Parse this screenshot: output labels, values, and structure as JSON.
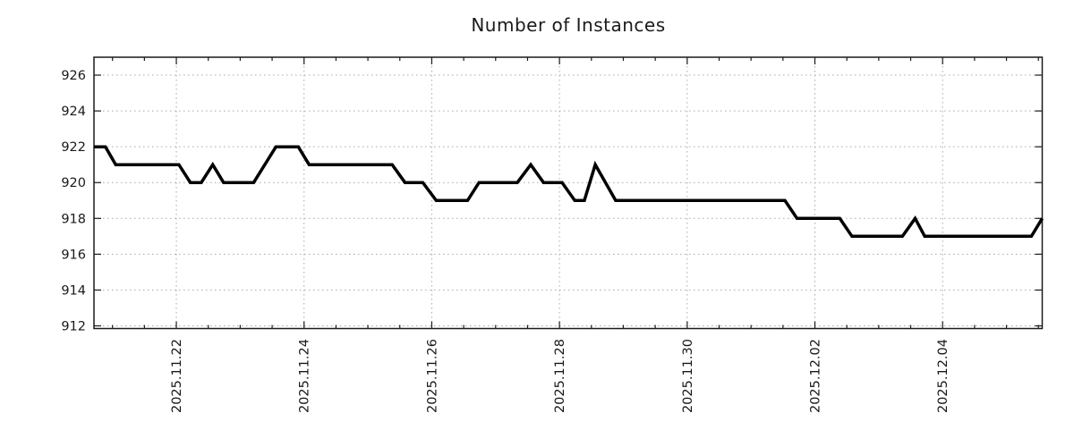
{
  "chart_data": {
    "type": "line",
    "title": "Number of Instances",
    "legend": "none",
    "grid": "dotted",
    "x_axis": {
      "label": "",
      "unit": "days since 2025-11-22 00:00",
      "range_days": [
        -1.29,
        13.56
      ],
      "major_tick_positions_days": [
        0,
        2,
        4,
        6,
        8,
        10,
        12
      ],
      "tick_labels": [
        "2025.11.22",
        "2025.11.24",
        "2025.11.26",
        "2025.11.28",
        "2025.11.30",
        "2025.12.02",
        "2025.12.04"
      ],
      "minor_tick_interval_days": 0.5
    },
    "y_axis": {
      "label": "",
      "range": [
        911.85,
        927.0
      ],
      "tick_values": [
        912,
        914,
        916,
        918,
        920,
        922,
        924,
        926
      ],
      "tick_labels": [
        "912",
        "914",
        "916",
        "918",
        "920",
        "922",
        "924",
        "926"
      ]
    },
    "series": [
      {
        "name": "instances",
        "color": "#000000",
        "points": [
          [
            -1.29,
            922
          ],
          [
            -1.11,
            922
          ],
          [
            -0.95,
            921
          ],
          [
            0.04,
            921
          ],
          [
            0.22,
            920
          ],
          [
            0.39,
            920
          ],
          [
            0.57,
            921
          ],
          [
            0.74,
            920
          ],
          [
            1.21,
            920
          ],
          [
            1.56,
            922
          ],
          [
            1.91,
            922
          ],
          [
            2.08,
            921
          ],
          [
            3.38,
            921
          ],
          [
            3.58,
            920
          ],
          [
            3.86,
            920
          ],
          [
            4.07,
            919
          ],
          [
            4.56,
            919
          ],
          [
            4.74,
            920
          ],
          [
            5.34,
            920
          ],
          [
            5.55,
            921
          ],
          [
            5.75,
            920
          ],
          [
            6.04,
            920
          ],
          [
            6.24,
            919
          ],
          [
            6.39,
            919
          ],
          [
            6.56,
            921
          ],
          [
            6.88,
            919
          ],
          [
            9.53,
            919
          ],
          [
            9.72,
            918
          ],
          [
            10.39,
            918
          ],
          [
            10.58,
            917
          ],
          [
            11.37,
            917
          ],
          [
            11.57,
            918
          ],
          [
            11.72,
            917
          ],
          [
            13.39,
            917
          ],
          [
            13.56,
            918
          ]
        ]
      }
    ]
  },
  "colors": {
    "background": "#ffffff",
    "grid": "#a8a8a8",
    "axis": "#1a1a1a",
    "text": "#1a1a1a",
    "line": "#000000"
  }
}
